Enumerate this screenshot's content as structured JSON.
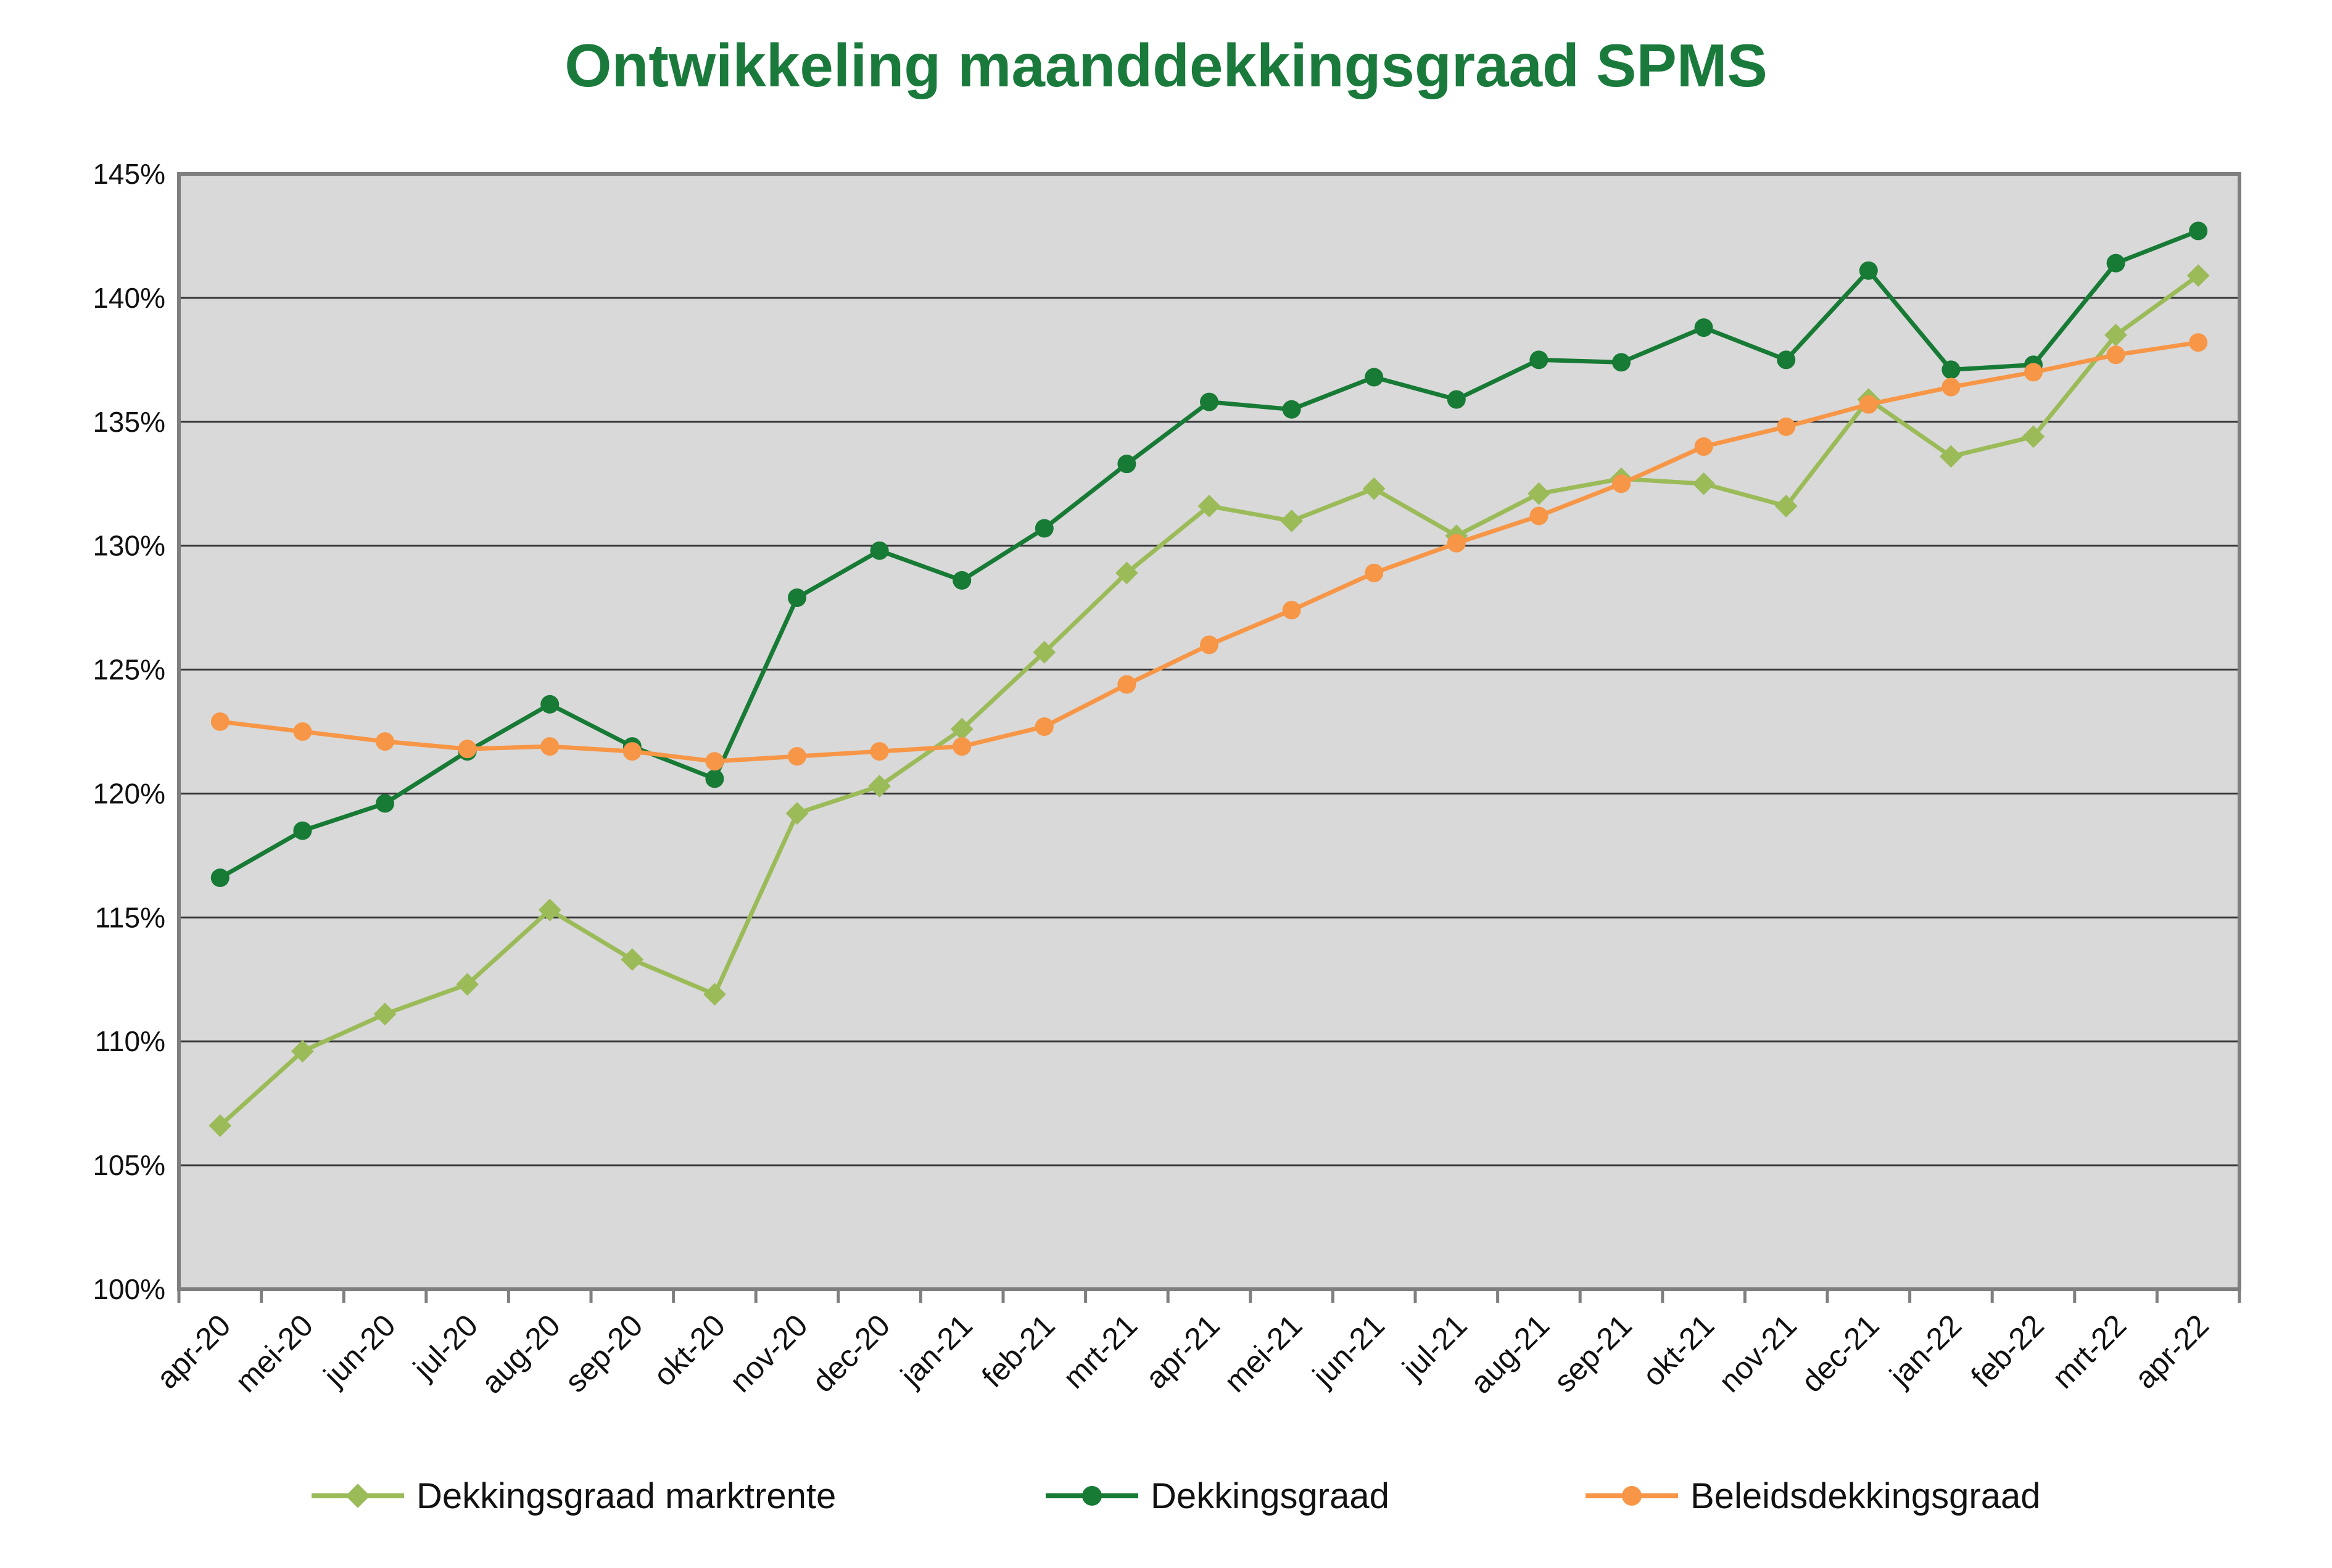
{
  "chart_data": {
    "type": "line",
    "title": "Ontwikkeling maanddekkingsgraad SPMS",
    "xlabel": "",
    "ylabel": "",
    "ylim": [
      100,
      145
    ],
    "yticks": [
      "100%",
      "105%",
      "110%",
      "115%",
      "120%",
      "125%",
      "130%",
      "135%",
      "140%",
      "145%"
    ],
    "categories": [
      "apr-20",
      "mei-20",
      "jun-20",
      "jul-20",
      "aug-20",
      "sep-20",
      "okt-20",
      "nov-20",
      "dec-20",
      "jan-21",
      "feb-21",
      "mrt-21",
      "apr-21",
      "mei-21",
      "jun-21",
      "jul-21",
      "aug-21",
      "sep-21",
      "okt-21",
      "nov-21",
      "dec-21",
      "jan-22",
      "feb-22",
      "mrt-22",
      "apr-22"
    ],
    "grid": true,
    "legend_position": "bottom",
    "series": [
      {
        "name": "Dekkingsgraad marktrente",
        "color": "#9bbb59",
        "marker": "diamond",
        "values": [
          106.6,
          109.6,
          111.1,
          112.3,
          115.3,
          113.3,
          111.9,
          119.2,
          120.3,
          122.6,
          125.7,
          128.9,
          131.6,
          131.0,
          132.3,
          130.4,
          132.1,
          132.7,
          132.5,
          131.6,
          135.9,
          133.6,
          134.4,
          138.5,
          140.9
        ]
      },
      {
        "name": "Dekkingsgraad",
        "color": "#177a35",
        "marker": "circle",
        "values": [
          116.6,
          118.5,
          119.6,
          121.7,
          123.6,
          121.9,
          120.6,
          127.9,
          129.8,
          128.6,
          130.7,
          133.3,
          135.8,
          135.5,
          136.8,
          135.9,
          137.5,
          137.4,
          138.8,
          137.5,
          141.1,
          137.1,
          137.3,
          141.4,
          142.7
        ]
      },
      {
        "name": "Beleidsdekkingsgraad",
        "color": "#f79646",
        "marker": "circle",
        "values": [
          122.9,
          122.5,
          122.1,
          121.8,
          121.9,
          121.7,
          121.3,
          121.5,
          121.7,
          121.9,
          122.7,
          124.4,
          126.0,
          127.4,
          128.9,
          130.1,
          131.2,
          132.5,
          134.0,
          134.8,
          135.7,
          136.4,
          137.0,
          137.7,
          138.2
        ]
      }
    ]
  },
  "colors": {
    "title": "#1a7a3c",
    "plot_background": "#d9d9d9",
    "gridline": "#333333",
    "axis": "#7f7f7f"
  }
}
